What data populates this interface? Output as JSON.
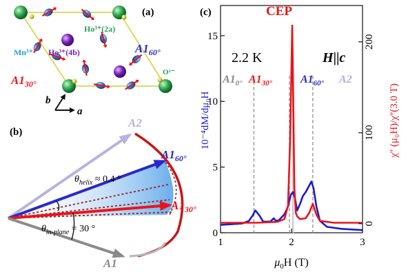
{
  "panel_a": {
    "label": "(a)",
    "ho_2a": "Ho³⁺(2a)",
    "ho_4b": "Ho³⁺(4b)",
    "mn": "Mn³⁺",
    "o": "O²⁻",
    "a1_60_main": "A1",
    "a1_60_sub": "60°",
    "a1_30_main": "A1",
    "a1_30_sub": "30°",
    "axis_b": "b",
    "axis_a": "a",
    "colors": {
      "cell": "#d8d850",
      "ho2a": "#2aa05a",
      "ho4b": "#7a22b8",
      "mn": "#2f73c8",
      "o": "#d8d030"
    }
  },
  "panel_b": {
    "label": "(b)",
    "a2": "A2",
    "a1_60_main": "A1",
    "a1_60_sub": "60°",
    "a1_30_main": "A1",
    "a1_30_sub": "30°",
    "a1": "A1",
    "theta_helix_sym": "θ",
    "theta_helix_sub": "helix",
    "theta_helix_val": " ≈ 0.4 °",
    "theta_in_sym": "θ",
    "theta_in_sub": "in-plane",
    "theta_in_val": " = 30 °"
  },
  "panel_c": {
    "label": "(c)",
    "annotation_cep": "CEP",
    "annotation_temp": "2.2 K",
    "annotation_field": "H",
    "annotation_field_par": "||",
    "annotation_field_c": "c",
    "region_labels": [
      {
        "main": "A1",
        "sub": "0°",
        "color": "#888888"
      },
      {
        "main": "A1",
        "sub": "30°",
        "color": "#e8151b"
      },
      {
        "main": "A1",
        "sub": "60°",
        "color": "#2a28c8"
      },
      {
        "main": "A2",
        "sub": "",
        "color": "#b0aee0"
      }
    ],
    "xlabel_mu": "μ",
    "xlabel_sub": "0",
    "xlabel_rest": "H (T)",
    "ylabel_left": "10⁻⁴dM/dμ₀H",
    "ylabel_right": "χ'' (μ₀H)/χ''(3.0 T)"
  },
  "chart_data": {
    "type": "line",
    "x_range": [
      1,
      3
    ],
    "x_ticks": [
      "1",
      "2",
      "3"
    ],
    "y_left_range": [
      0,
      17.3
    ],
    "y_left_ticks": [
      "0",
      "5",
      "10",
      "15"
    ],
    "y_right_range": [
      -10,
      240
    ],
    "y_right_ticks": [
      "0",
      "100",
      "200"
    ],
    "phase_boundaries": [
      1.47,
      1.97,
      2.3
    ],
    "cep_line": 2.02,
    "series": [
      {
        "axis": "left",
        "color": "#1a1ad0",
        "x": [
          1.0,
          1.3,
          1.4,
          1.45,
          1.49,
          1.55,
          1.6,
          1.7,
          1.75,
          1.78,
          1.82,
          1.9,
          1.95,
          1.99,
          2.02,
          2.05,
          2.08,
          2.12,
          2.16,
          2.2,
          2.25,
          2.28,
          2.31,
          2.35,
          2.4,
          2.5,
          2.7,
          3.0
        ],
        "y": [
          0.6,
          0.7,
          0.9,
          1.3,
          1.7,
          1.3,
          0.85,
          0.85,
          1.1,
          0.9,
          0.95,
          1.4,
          2.0,
          2.9,
          3.1,
          2.6,
          1.7,
          2.2,
          2.8,
          3.1,
          3.6,
          3.9,
          3.4,
          2.0,
          0.9,
          0.45,
          0.3,
          0.2
        ]
      },
      {
        "axis": "right",
        "color": "#e8151b",
        "x": [
          1.0,
          1.5,
          1.8,
          1.9,
          1.95,
          1.98,
          2.0,
          2.01,
          2.02,
          2.04,
          2.06,
          2.08,
          2.12,
          2.2,
          2.25,
          2.3,
          2.35,
          2.4,
          2.6,
          3.0
        ],
        "y": [
          1,
          1,
          2,
          5,
          20,
          90,
          175,
          218,
          160,
          40,
          12,
          8,
          5,
          6,
          12,
          22,
          10,
          3,
          1,
          1
        ]
      }
    ]
  }
}
